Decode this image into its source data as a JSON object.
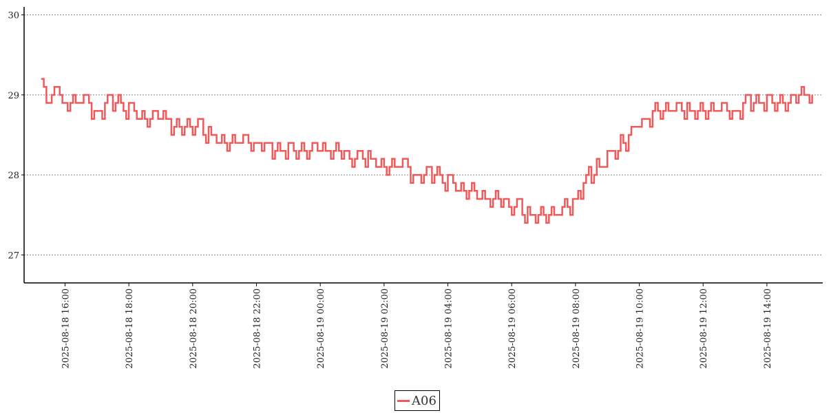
{
  "chart_data": {
    "type": "line",
    "title": "",
    "xlabel": "",
    "ylabel": "",
    "ylim": [
      26.65,
      30.1
    ],
    "xlim": [
      "2025-08-18 14:43",
      "2025-08-19 15:45"
    ],
    "y_ticks": [
      27,
      28,
      29,
      30
    ],
    "x_ticks": [
      "2025-08-18 16:00",
      "2025-08-18 18:00",
      "2025-08-18 20:00",
      "2025-08-18 22:00",
      "2025-08-19 00:00",
      "2025-08-19 02:00",
      "2025-08-19 04:00",
      "2025-08-19 06:00",
      "2025-08-19 08:00",
      "2025-08-19 10:00",
      "2025-08-19 12:00",
      "2025-08-19 14:00"
    ],
    "grid": "horizontal dotted",
    "legend_position": "bottom-center",
    "series": [
      {
        "name": "A06",
        "color": "#f0595a",
        "points": [
          [
            "2025-08-18 15:15",
            29.1
          ],
          [
            "2025-08-18 15:30",
            29.0
          ],
          [
            "2025-08-18 15:45",
            29.0
          ],
          [
            "2025-08-18 16:00",
            28.9
          ],
          [
            "2025-08-18 16:30",
            28.9
          ],
          [
            "2025-08-18 17:00",
            28.8
          ],
          [
            "2025-08-18 17:30",
            28.9
          ],
          [
            "2025-08-18 18:00",
            28.8
          ],
          [
            "2025-08-18 18:30",
            28.7
          ],
          [
            "2025-08-18 19:00",
            28.7
          ],
          [
            "2025-08-18 19:30",
            28.6
          ],
          [
            "2025-08-18 20:00",
            28.6
          ],
          [
            "2025-08-18 20:30",
            28.5
          ],
          [
            "2025-08-18 21:00",
            28.4
          ],
          [
            "2025-08-18 21:30",
            28.4
          ],
          [
            "2025-08-18 22:00",
            28.4
          ],
          [
            "2025-08-18 22:30",
            28.3
          ],
          [
            "2025-08-18 23:00",
            28.3
          ],
          [
            "2025-08-18 23:30",
            28.3
          ],
          [
            "2025-08-19 00:00",
            28.3
          ],
          [
            "2025-08-19 00:30",
            28.3
          ],
          [
            "2025-08-19 01:00",
            28.2
          ],
          [
            "2025-08-19 01:30",
            28.2
          ],
          [
            "2025-08-19 02:00",
            28.1
          ],
          [
            "2025-08-19 02:30",
            28.1
          ],
          [
            "2025-08-19 03:00",
            28.0
          ],
          [
            "2025-08-19 03:30",
            28.0
          ],
          [
            "2025-08-19 04:00",
            27.9
          ],
          [
            "2025-08-19 04:30",
            27.8
          ],
          [
            "2025-08-19 05:00",
            27.7
          ],
          [
            "2025-08-19 05:30",
            27.7
          ],
          [
            "2025-08-19 06:00",
            27.6
          ],
          [
            "2025-08-19 06:30",
            27.5
          ],
          [
            "2025-08-19 07:00",
            27.5
          ],
          [
            "2025-08-19 07:30",
            27.5
          ],
          [
            "2025-08-19 08:00",
            27.7
          ],
          [
            "2025-08-19 08:30",
            28.0
          ],
          [
            "2025-08-19 09:00",
            28.2
          ],
          [
            "2025-08-19 09:30",
            28.4
          ],
          [
            "2025-08-19 10:00",
            28.6
          ],
          [
            "2025-08-19 10:30",
            28.8
          ],
          [
            "2025-08-19 11:00",
            28.85
          ],
          [
            "2025-08-19 11:30",
            28.8
          ],
          [
            "2025-08-19 12:00",
            28.75
          ],
          [
            "2025-08-19 12:30",
            28.8
          ],
          [
            "2025-08-19 13:00",
            28.8
          ],
          [
            "2025-08-19 13:30",
            28.9
          ],
          [
            "2025-08-19 14:00",
            28.9
          ],
          [
            "2025-08-19 14:30",
            28.9
          ],
          [
            "2025-08-19 15:00",
            28.95
          ],
          [
            "2025-08-19 15:25",
            29.0
          ]
        ]
      }
    ]
  },
  "legend": {
    "label": "A06",
    "color": "#f0595a"
  }
}
